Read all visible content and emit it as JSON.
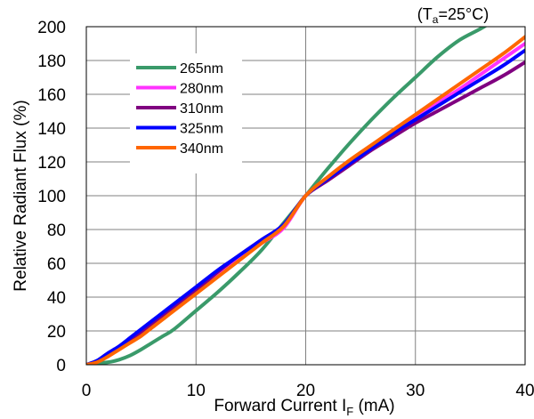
{
  "chart_data": {
    "type": "line",
    "title": "",
    "condition": {
      "prefix": "(T",
      "sub": "a",
      "suffix": "=25°C)"
    },
    "xlabel": {
      "prefix": "Forward Current I",
      "sub": "F",
      "suffix": " (mA)"
    },
    "ylabel": "Relative Radiant Flux (%)",
    "xlim": [
      0,
      40
    ],
    "ylim": [
      0,
      200
    ],
    "xticks": [
      0,
      10,
      20,
      30,
      40
    ],
    "yticks": [
      0,
      20,
      40,
      60,
      80,
      100,
      120,
      140,
      160,
      180,
      200
    ],
    "grid": true,
    "legend_position": "top-left",
    "x": [
      0,
      1,
      2,
      3,
      4,
      5,
      6,
      7,
      8,
      10,
      12,
      14,
      16,
      18,
      20,
      22,
      24,
      26,
      28,
      30,
      32,
      34,
      36,
      38,
      40
    ],
    "series": [
      {
        "name": "265nm",
        "color": "#3a9a6a",
        "values": [
          0,
          1,
          1.5,
          3,
          5.5,
          9,
          13,
          17,
          21,
          32,
          43,
          55,
          68,
          84,
          100,
          116,
          131,
          145,
          158,
          170,
          182,
          192,
          199,
          207,
          215
        ]
      },
      {
        "name": "280nm",
        "color": "#ff33ff",
        "values": [
          0,
          2,
          6,
          10,
          14,
          19,
          24,
          29,
          33,
          43,
          53,
          63,
          72,
          81,
          100,
          110,
          120,
          129,
          138,
          146,
          155,
          163,
          172,
          181,
          190
        ]
      },
      {
        "name": "310nm",
        "color": "#800080",
        "values": [
          0,
          2,
          6,
          10,
          14,
          19,
          24,
          29,
          34,
          44,
          55,
          65,
          74,
          83,
          100,
          109,
          118,
          127,
          135,
          143,
          150,
          157,
          164,
          171,
          179
        ]
      },
      {
        "name": "325nm",
        "color": "#0000ff",
        "values": [
          0,
          2.5,
          7,
          11,
          16,
          21,
          26,
          31,
          36,
          46,
          56,
          65,
          74,
          83,
          100,
          110,
          119,
          128,
          137,
          145,
          153,
          161,
          169,
          177,
          186
        ]
      },
      {
        "name": "340nm",
        "color": "#ff6600",
        "values": [
          0,
          1.5,
          5,
          9,
          13,
          17,
          22,
          27,
          32,
          42,
          52,
          62,
          72,
          82,
          100,
          111,
          121,
          130,
          139,
          148,
          157,
          166,
          175,
          184,
          194
        ]
      }
    ]
  }
}
